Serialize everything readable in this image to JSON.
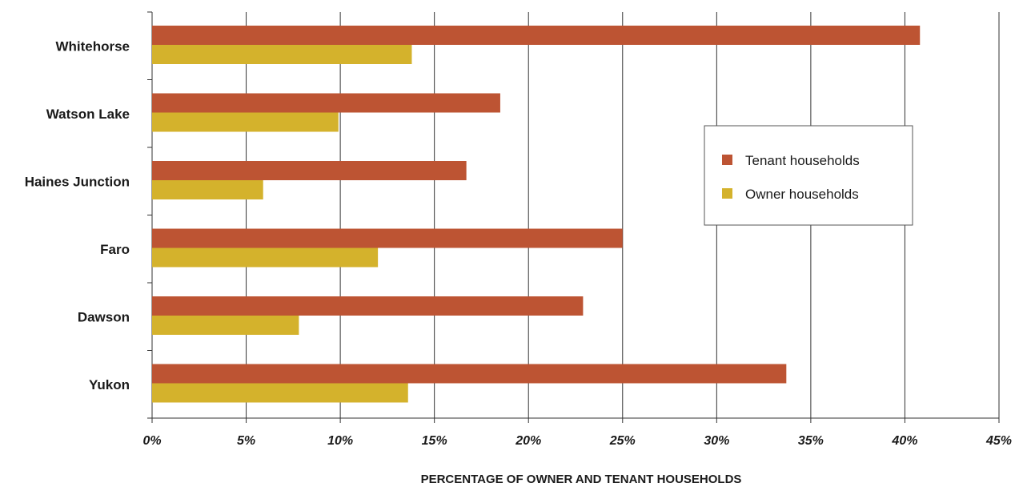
{
  "chart_data": {
    "type": "bar",
    "orientation": "horizontal",
    "categories": [
      "Whitehorse",
      "Watson Lake",
      "Haines Junction",
      "Faro",
      "Dawson",
      "Yukon"
    ],
    "series": [
      {
        "name": "Tenant households",
        "color": "#BD5433",
        "values": [
          40.8,
          18.5,
          16.7,
          25.0,
          22.9,
          33.7
        ]
      },
      {
        "name": "Owner households",
        "color": "#D4B22C",
        "values": [
          13.8,
          9.9,
          5.9,
          12.0,
          7.8,
          13.6
        ]
      }
    ],
    "xlim": [
      0,
      45
    ],
    "xticks": [
      0,
      5,
      10,
      15,
      20,
      25,
      30,
      35,
      40,
      45
    ],
    "xtick_labels": [
      "0%",
      "5%",
      "10%",
      "15%",
      "20%",
      "25%",
      "30%",
      "35%",
      "40%",
      "45%"
    ],
    "xlabel": "PERCENTAGE OF OWNER AND TENANT HOUSEHOLDS",
    "ylabel": "",
    "title": "",
    "grid": "vertical",
    "legend_position": "right"
  }
}
